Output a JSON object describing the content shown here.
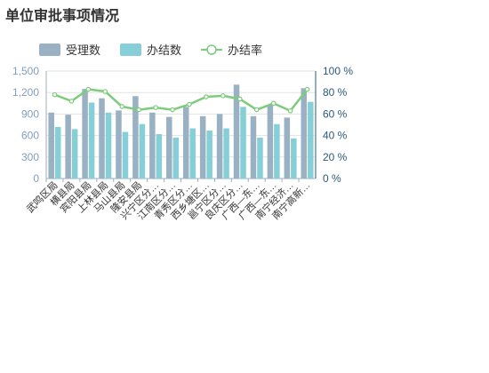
{
  "chart_data": {
    "type": "bar",
    "title": "单位审批事项情况",
    "categories": [
      "武鸣区局",
      "横县局",
      "宾阳县局",
      "上林县局",
      "马山县局",
      "隆安县局",
      "兴宁区分…",
      "江南区分…",
      "青秀区分…",
      "西乡塘区…",
      "邕宁区分…",
      "良庆区分…",
      "广西—东…",
      "广西—东…",
      "南宁经济…",
      "南宁高新…"
    ],
    "series": [
      {
        "name": "受理数",
        "kind": "bar",
        "axis": "left",
        "color": "#9ab1c3",
        "values": [
          920,
          890,
          1250,
          1120,
          950,
          1150,
          920,
          860,
          1000,
          870,
          900,
          1310,
          870,
          1030,
          850,
          1260
        ]
      },
      {
        "name": "办结数",
        "kind": "bar",
        "axis": "left",
        "color": "#86cfd6",
        "values": [
          720,
          690,
          1060,
          920,
          650,
          760,
          620,
          570,
          700,
          670,
          700,
          1000,
          570,
          760,
          560,
          1070
        ]
      },
      {
        "name": "办结率",
        "kind": "line",
        "axis": "right",
        "color": "#7ccc7c",
        "values": [
          78,
          72,
          83,
          81,
          67,
          64,
          66,
          64,
          69,
          76,
          77,
          74,
          64,
          70,
          63,
          83
        ]
      }
    ],
    "y_left": {
      "min": 0,
      "max": 1500,
      "ticks": [
        0,
        300,
        600,
        900,
        1200,
        1500
      ],
      "tick_labels": [
        "0",
        "300",
        "600",
        "900",
        "1,200",
        "1,500"
      ]
    },
    "y_right": {
      "min": 0,
      "max": 100,
      "ticks": [
        0,
        20,
        40,
        60,
        80,
        100
      ],
      "tick_labels": [
        "0 %",
        "20 %",
        "40 %",
        "60 %",
        "80 %",
        "100 %"
      ]
    },
    "legend_position": "top-left",
    "grid": true
  }
}
